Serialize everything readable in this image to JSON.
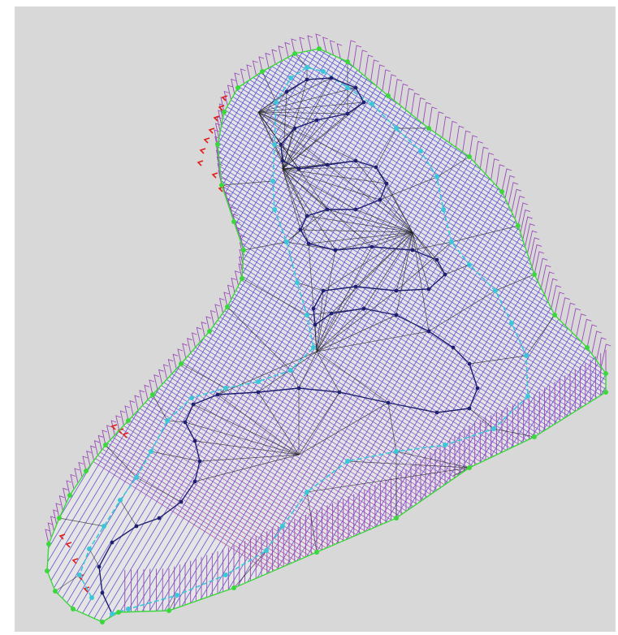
{
  "view": {
    "background_color": "#d8d8d8",
    "canvas_color": "#ffffff"
  },
  "colors": {
    "hatch_blue": "#4a4ad8",
    "hatch_purple": "#9a4ab8",
    "hatch_red": "#d24a6a",
    "outer_boundary": "#3ad83a",
    "inner_boundary": "#3ac8d8",
    "spine": "#202070",
    "fan_lines": "#202020",
    "left_edge_markers": "#e02020"
  },
  "layers": [
    {
      "name": "cross-hatch-mesh"
    },
    {
      "name": "skirt-teeth"
    },
    {
      "name": "inner-boundary"
    },
    {
      "name": "outer-boundary"
    },
    {
      "name": "serpentine-spine"
    },
    {
      "name": "fan-lines"
    },
    {
      "name": "nodes"
    }
  ]
}
